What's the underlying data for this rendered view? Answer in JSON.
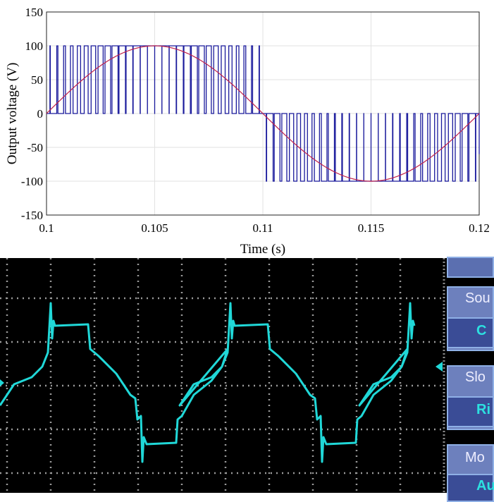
{
  "chart_data": [
    {
      "type": "line",
      "xlabel": "Time (s)",
      "ylabel": "Output voltage (V)",
      "xlim": [
        0.1,
        0.12
      ],
      "ylim": [
        -150,
        150
      ],
      "xticks": [
        "0.1",
        "0.105",
        "0.11",
        "0.115",
        "0.12"
      ],
      "yticks": [
        "150",
        "100",
        "50",
        "0",
        "-50",
        "-100",
        "-150"
      ],
      "grid": true,
      "series": [
        {
          "kind": "pwm",
          "color": "#1a1a9c",
          "levels": [
            -100,
            0,
            100
          ],
          "pulses_per_half_cycle": 30
        },
        {
          "kind": "sine",
          "color": "#c0204a",
          "amplitude": 100,
          "frequency_hz": 50
        }
      ]
    },
    {
      "type": "line",
      "description_kind": "oscilloscope",
      "trace_color": "#20d8d8",
      "background": "#000000",
      "menu": [
        "Sou",
        "C",
        "Slo",
        "Ri",
        "Mo",
        "Au"
      ]
    }
  ]
}
